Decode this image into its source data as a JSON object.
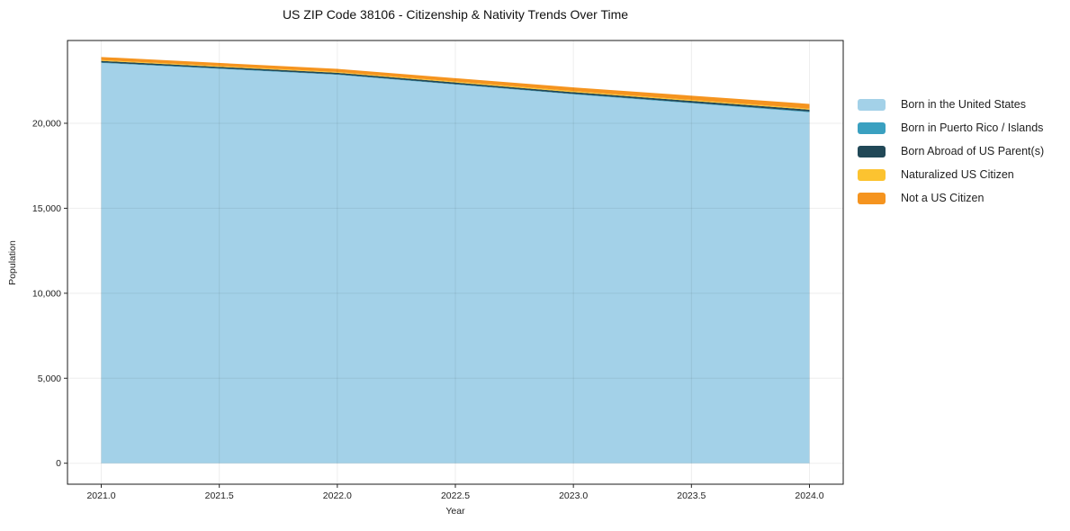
{
  "title": "US ZIP Code 38106 - Citizenship & Nativity Trends Over Time",
  "chart_data": {
    "type": "area",
    "stacked": true,
    "title": "US ZIP Code 38106 - Citizenship & Nativity Trends Over Time",
    "xlabel": "Year",
    "ylabel": "Population",
    "x": [
      2021,
      2022,
      2023,
      2024
    ],
    "series": [
      {
        "name": "Born in the United States",
        "color": "#a3d1e8",
        "values": [
          23550,
          22850,
          21700,
          20650
        ]
      },
      {
        "name": "Born in Puerto Rico / Islands",
        "color": "#3aa0c0",
        "values": [
          30,
          30,
          30,
          40
        ]
      },
      {
        "name": "Born Abroad of US Parent(s)",
        "color": "#214857",
        "values": [
          90,
          90,
          100,
          110
        ]
      },
      {
        "name": "Naturalized US Citizen",
        "color": "#fcc330",
        "values": [
          50,
          50,
          60,
          60
        ]
      },
      {
        "name": "Not a US Citizen",
        "color": "#f5941f",
        "values": [
          180,
          180,
          220,
          280
        ]
      }
    ],
    "totals": [
      23900,
      23200,
      22110,
      21140
    ],
    "xticks": [
      2021.0,
      2021.5,
      2022.0,
      2022.5,
      2023.0,
      2023.5,
      2024.0
    ],
    "xtick_labels": [
      "2021.0",
      "2021.5",
      "2022.0",
      "2022.5",
      "2023.0",
      "2023.5",
      "2024.0"
    ],
    "yticks": [
      0,
      5000,
      10000,
      15000,
      20000
    ],
    "ytick_labels": [
      "0",
      "5,000",
      "10,000",
      "15,000",
      "20,000"
    ],
    "xlim": [
      2020.857,
      2024.143
    ],
    "ylim": [
      -1234,
      24870
    ],
    "grid": true,
    "legend_position": "right",
    "colors": {
      "grid": "rgba(0,0,0,0.07)",
      "spine": "#1a1a1a",
      "tick": "#262626",
      "background": "#ffffff"
    }
  }
}
